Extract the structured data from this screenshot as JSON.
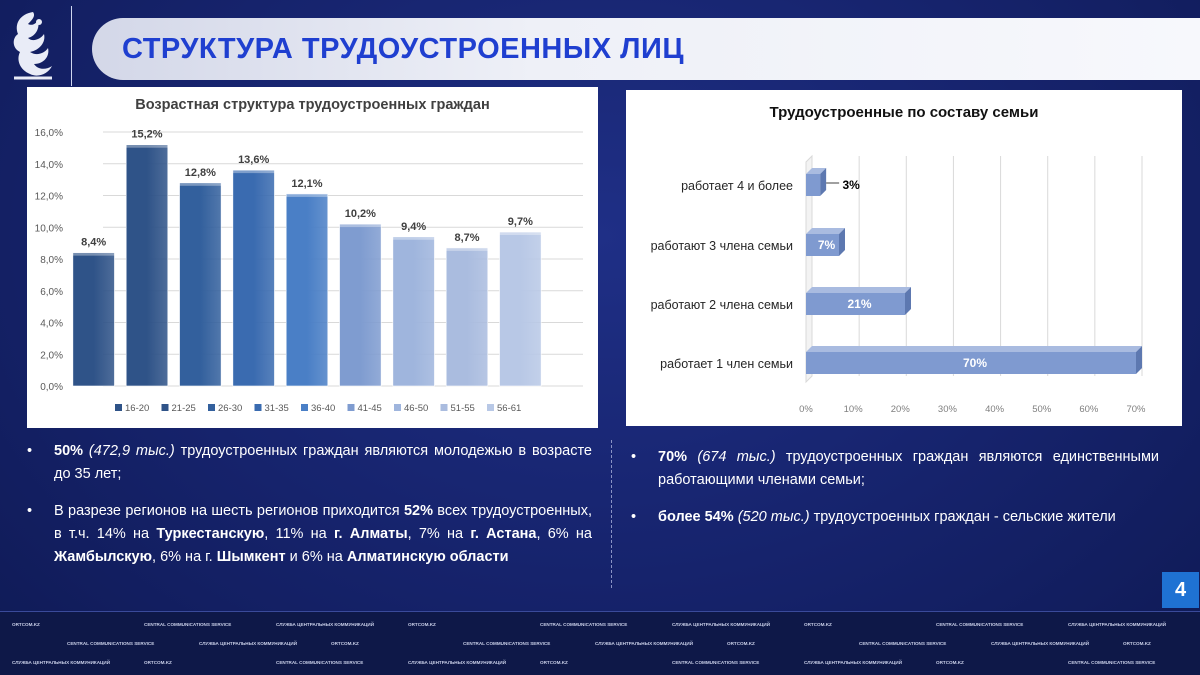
{
  "header": {
    "title": "СТРУКТУРА ТРУДОУСТРОЕННЫХ ЛИЦ",
    "page_number": "4"
  },
  "colors": {
    "background": "#16236c",
    "title_text": "#1f3fd0",
    "page_badge": "#1f72d3"
  },
  "chart_data": [
    {
      "type": "bar",
      "title": "Возрастная структура трудоустроенных граждан",
      "categories": [
        "16-20",
        "21-25",
        "26-30",
        "31-35",
        "36-40",
        "41-45",
        "46-50",
        "51-55",
        "56-61"
      ],
      "values": [
        8.4,
        15.2,
        12.8,
        13.6,
        12.1,
        10.2,
        9.4,
        8.7,
        9.7
      ],
      "data_labels": [
        "8,4%",
        "15,2%",
        "12,8%",
        "13,6%",
        "12,1%",
        "10,2%",
        "9,4%",
        "8,7%",
        "9,7%"
      ],
      "colors": [
        "#2f5388",
        "#2f5388",
        "#33609d",
        "#3a6bb0",
        "#4a7fc6",
        "#7f9cd0",
        "#9fb5dd",
        "#aabcdf",
        "#b8c8e6"
      ],
      "yticks": [
        "0,0%",
        "2,0%",
        "4,0%",
        "6,0%",
        "8,0%",
        "10,0%",
        "12,0%",
        "14,0%",
        "16,0%"
      ],
      "ylim": [
        0,
        16
      ],
      "legend_position": "bottom",
      "grid": true
    },
    {
      "type": "bar",
      "orientation": "horizontal",
      "title": "Трудоустроенные  по составу семьи",
      "categories": [
        "работает 4 и более",
        "работают 3 члена семьи",
        "работают 2 члена семьи",
        "работает 1 член семьи"
      ],
      "values": [
        3,
        7,
        21,
        70
      ],
      "data_labels": [
        "3%",
        "7%",
        "21%",
        "70%"
      ],
      "xticks": [
        "0%",
        "10%",
        "20%",
        "30%",
        "40%",
        "50%",
        "60%",
        "70%"
      ],
      "xlim": [
        0,
        70
      ],
      "bar_color": "#7f9ad0",
      "grid": true
    }
  ],
  "bullets_left": [
    {
      "b1": "50%",
      "i1": "(472,9 тыс.)",
      "t1": " трудоустроенных граждан являются молодежью в возрасте до 35 лет;"
    },
    {
      "t1": "В разрезе регионов на шесть регионов приходится ",
      "b1": "52%",
      "t2": " всех трудоустроенных, в т.ч. 14% на ",
      "b2": "Туркестанскую",
      "t3": ", 11% на ",
      "b3": "г. Алматы",
      "t4": ", 7% на ",
      "b4": "г. Астана",
      "t5": ", 6% на ",
      "b5": "Жамбылскую",
      "t6": ", 6% на г. ",
      "b6": "Шымкент",
      "t7": " и 6% на ",
      "b7": "Алматинскую области"
    }
  ],
  "bullets_right": [
    {
      "b1": "70%",
      "i1": "(674 тыс.)",
      "t1": " трудоустроенных граждан являются единственными работающими членами семьи;"
    },
    {
      "b1": "более 54%",
      "i1": "(520 тыс.)",
      "t1": " трудоустроенных  граждан - сельские жители"
    }
  ],
  "footer": {
    "slogans": [
      "ORTCOM.KZ",
      "CENTRAL COMMUNICATIONS SERVICE",
      "СЛУЖБА ЦЕНТРАЛЬНЫХ КОММУНИКАЦИЙ"
    ]
  }
}
